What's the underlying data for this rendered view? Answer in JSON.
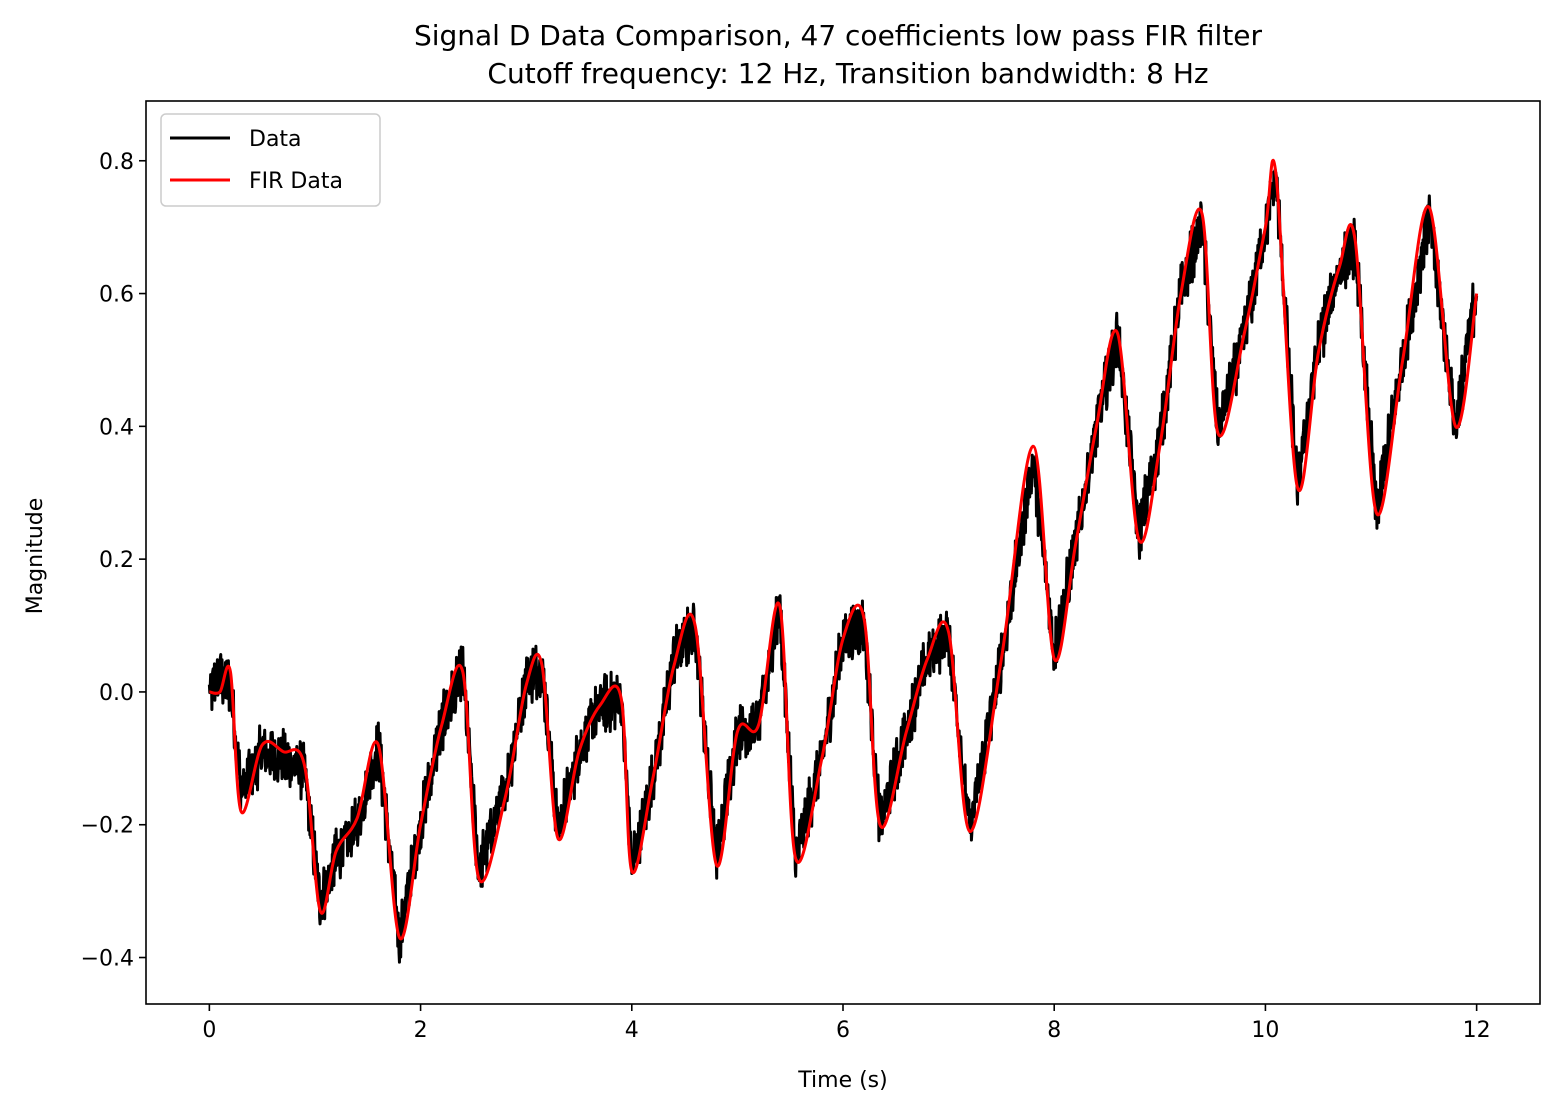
{
  "chart_data": {
    "type": "line",
    "title_line1": "Signal D Data Comparison, 47 coefficients low pass FIR filter",
    "title_line2": "Cutoff frequency: 12 Hz, Transition bandwidth: 8 Hz",
    "xlabel": "Time (s)",
    "ylabel": "Magnitude",
    "xlim": [
      -0.6,
      12.6
    ],
    "ylim": [
      -0.47,
      0.89
    ],
    "xticks": [
      0,
      2,
      4,
      6,
      8,
      10,
      12
    ],
    "yticks": [
      -0.4,
      -0.2,
      0.0,
      0.2,
      0.4,
      0.6,
      0.8
    ],
    "xtick_labels": [
      "0",
      "2",
      "4",
      "6",
      "8",
      "10",
      "12"
    ],
    "ytick_labels": [
      "−0.4",
      "−0.2",
      "0.0",
      "0.2",
      "0.4",
      "0.6",
      "0.8"
    ],
    "legend_position": "top-left",
    "grid": false,
    "series": [
      {
        "name": "Data",
        "color": "#000000",
        "style": "noisy",
        "x": [
          0,
          0.1,
          0.2,
          0.3,
          0.5,
          0.7,
          0.9,
          1.05,
          1.2,
          1.4,
          1.6,
          1.8,
          2.0,
          2.2,
          2.4,
          2.55,
          2.8,
          3.0,
          3.15,
          3.3,
          3.5,
          3.7,
          3.9,
          4.0,
          4.2,
          4.4,
          4.6,
          4.8,
          5.0,
          5.2,
          5.4,
          5.55,
          5.8,
          6.0,
          6.2,
          6.35,
          6.6,
          6.8,
          7.0,
          7.2,
          7.5,
          7.8,
          8.0,
          8.2,
          8.4,
          8.6,
          8.8,
          9.0,
          9.2,
          9.4,
          9.55,
          9.8,
          10.0,
          10.1,
          10.3,
          10.5,
          10.7,
          10.85,
          11.05,
          11.3,
          11.55,
          11.8,
          12.0
        ],
        "y": [
          0.0,
          0.02,
          0.01,
          -0.15,
          -0.09,
          -0.1,
          -0.12,
          -0.32,
          -0.25,
          -0.2,
          -0.08,
          -0.37,
          -0.2,
          -0.05,
          0.03,
          -0.27,
          -0.15,
          0.02,
          0.04,
          -0.21,
          -0.09,
          -0.02,
          -0.01,
          -0.26,
          -0.13,
          0.05,
          0.1,
          -0.25,
          -0.06,
          -0.05,
          0.13,
          -0.25,
          -0.1,
          0.08,
          0.1,
          -0.2,
          -0.06,
          0.05,
          0.09,
          -0.21,
          0.05,
          0.35,
          0.06,
          0.22,
          0.4,
          0.54,
          0.24,
          0.38,
          0.6,
          0.71,
          0.39,
          0.54,
          0.7,
          0.78,
          0.31,
          0.52,
          0.64,
          0.67,
          0.27,
          0.5,
          0.72,
          0.4,
          0.61
        ]
      },
      {
        "name": "FIR Data",
        "color": "#ff0000",
        "style": "smooth",
        "x": [
          0,
          0.1,
          0.2,
          0.3,
          0.5,
          0.7,
          0.9,
          1.05,
          1.2,
          1.4,
          1.6,
          1.8,
          2.0,
          2.2,
          2.4,
          2.55,
          2.8,
          3.0,
          3.15,
          3.3,
          3.5,
          3.7,
          3.9,
          4.0,
          4.2,
          4.4,
          4.6,
          4.8,
          5.0,
          5.2,
          5.4,
          5.55,
          5.8,
          6.0,
          6.2,
          6.35,
          6.6,
          6.8,
          7.0,
          7.2,
          7.5,
          7.8,
          8.0,
          8.2,
          8.4,
          8.6,
          8.8,
          9.0,
          9.2,
          9.4,
          9.55,
          9.8,
          10.0,
          10.1,
          10.3,
          10.5,
          10.7,
          10.85,
          11.05,
          11.3,
          11.55,
          11.8,
          12.0
        ],
        "y": [
          0.0,
          0.0,
          0.03,
          -0.18,
          -0.08,
          -0.09,
          -0.11,
          -0.33,
          -0.24,
          -0.19,
          -0.08,
          -0.37,
          -0.2,
          -0.05,
          0.03,
          -0.28,
          -0.16,
          0.01,
          0.04,
          -0.22,
          -0.09,
          -0.02,
          -0.01,
          -0.27,
          -0.13,
          0.04,
          0.1,
          -0.26,
          -0.06,
          -0.05,
          0.13,
          -0.25,
          -0.1,
          0.08,
          0.11,
          -0.2,
          -0.06,
          0.05,
          0.09,
          -0.21,
          0.05,
          0.37,
          0.05,
          0.22,
          0.4,
          0.54,
          0.23,
          0.37,
          0.6,
          0.72,
          0.39,
          0.54,
          0.7,
          0.78,
          0.31,
          0.51,
          0.64,
          0.68,
          0.27,
          0.5,
          0.73,
          0.4,
          0.6
        ]
      }
    ]
  }
}
